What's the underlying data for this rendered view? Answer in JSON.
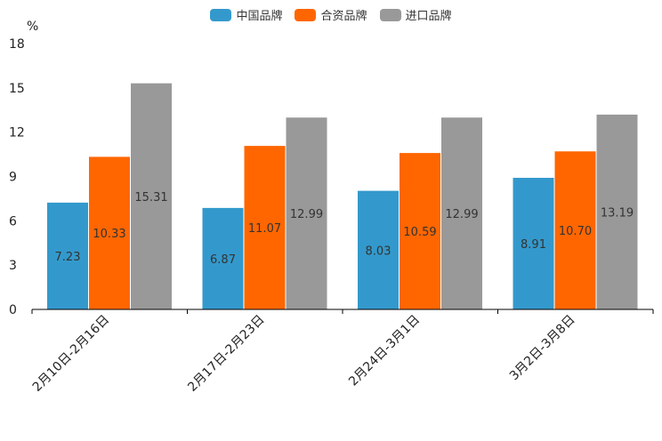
{
  "chart_data": {
    "type": "bar",
    "ylabel": "%",
    "ylim": [
      0,
      18
    ],
    "yticks": [
      "0",
      "3",
      "6",
      "9",
      "12",
      "15",
      "18"
    ],
    "categories": [
      "2月10日-2月16日",
      "2月17日-2月23日",
      "2月24日-3月1日",
      "3月2日-3月8日"
    ],
    "series": [
      {
        "name": "中国品牌",
        "color": "#3399cc",
        "values": [
          7.23,
          6.87,
          8.03,
          8.91
        ],
        "labels": [
          "7.23",
          "6.87",
          "8.03",
          "8.91"
        ]
      },
      {
        "name": "合资品牌",
        "color": "#ff6600",
        "values": [
          10.33,
          11.07,
          10.59,
          10.7
        ],
        "labels": [
          "10.33",
          "11.07",
          "10.59",
          "10.70"
        ]
      },
      {
        "name": "进口品牌",
        "color": "#999999",
        "values": [
          15.31,
          12.99,
          12.99,
          13.19
        ],
        "labels": [
          "15.31",
          "12.99",
          "12.99",
          "13.19"
        ]
      }
    ],
    "legend_position": "top-center",
    "grid": false
  }
}
